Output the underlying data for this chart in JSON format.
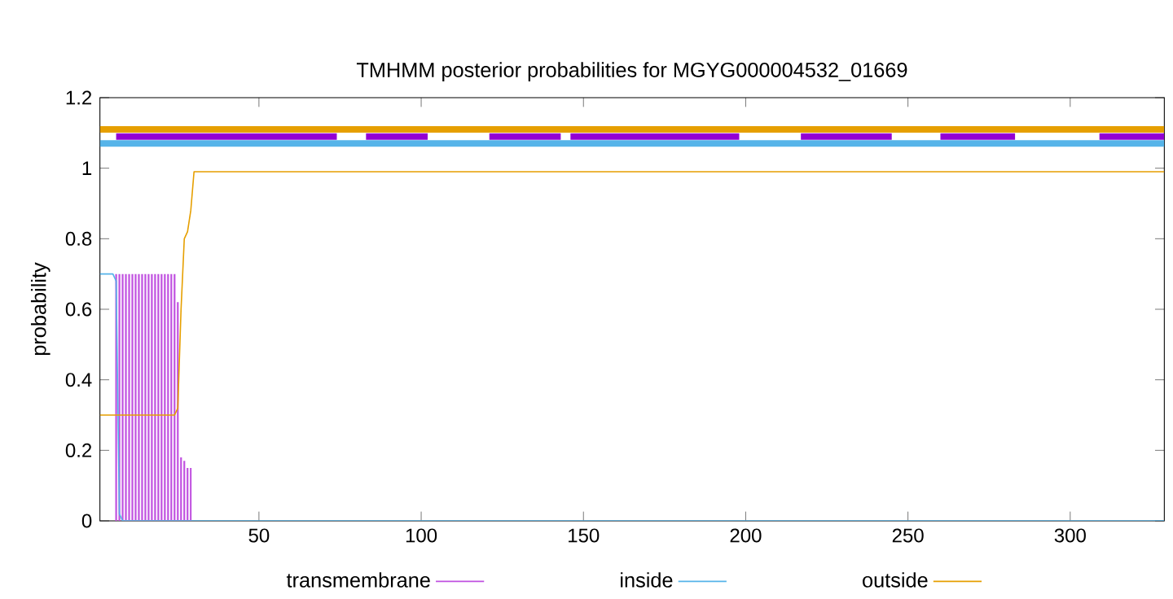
{
  "chart_data": {
    "type": "line",
    "title": "TMHMM posterior probabilities for MGYG000004532_01669",
    "ylabel": "probability",
    "xlim": [
      1,
      329
    ],
    "xticks": [
      50,
      100,
      150,
      200,
      250,
      300
    ],
    "ylim": [
      0,
      1.2
    ],
    "yticks": [
      0,
      0.2,
      0.4,
      0.6,
      0.8,
      1,
      1.2
    ],
    "legend": "bottom",
    "series": [
      {
        "name": "transmembrane",
        "type": "bar",
        "color": "#c050e0",
        "x": [
          6,
          7,
          8,
          9,
          10,
          11,
          12,
          13,
          14,
          15,
          16,
          17,
          18,
          19,
          20,
          21,
          22,
          23,
          24,
          25,
          26,
          27,
          28,
          29
        ],
        "values": [
          0.7,
          0.7,
          0.7,
          0.7,
          0.7,
          0.7,
          0.7,
          0.7,
          0.7,
          0.7,
          0.7,
          0.7,
          0.7,
          0.7,
          0.7,
          0.7,
          0.7,
          0.7,
          0.7,
          0.62,
          0.18,
          0.17,
          0.15,
          0.15
        ]
      },
      {
        "name": "inside",
        "color": "#56b4e9",
        "x": [
          1,
          5,
          6,
          7,
          8,
          329
        ],
        "values": [
          0.7,
          0.7,
          0.68,
          0.02,
          0,
          0
        ]
      },
      {
        "name": "outside",
        "color": "#e69f00",
        "x": [
          1,
          24,
          25,
          26,
          27,
          28,
          29,
          30,
          329
        ],
        "values": [
          0.3,
          0.3,
          0.32,
          0.6,
          0.8,
          0.82,
          0.88,
          0.99,
          0.99
        ]
      },
      {
        "color": "#e69f00",
        "x": [
          1,
          329
        ],
        "values": [
          1.11,
          1.11
        ]
      },
      {
        "color": "#56b4e9",
        "x": [
          1,
          329
        ],
        "values": [
          1.07,
          1.07
        ]
      },
      {
        "color": "#9400d3",
        "x": [
          6,
          25,
          25,
          74,
          75,
          83,
          102,
          103,
          121,
          143,
          144,
          146,
          198,
          199,
          217,
          245,
          246,
          260,
          283,
          284,
          309,
          329
        ],
        "values": [
          1.09,
          1.09,
          1.09,
          1.09,
          null,
          1.09,
          1.09,
          null,
          1.09,
          1.09,
          null,
          1.09,
          1.09,
          null,
          1.09,
          1.09,
          null,
          1.09,
          1.09,
          null,
          1.09,
          1.09
        ]
      }
    ]
  }
}
